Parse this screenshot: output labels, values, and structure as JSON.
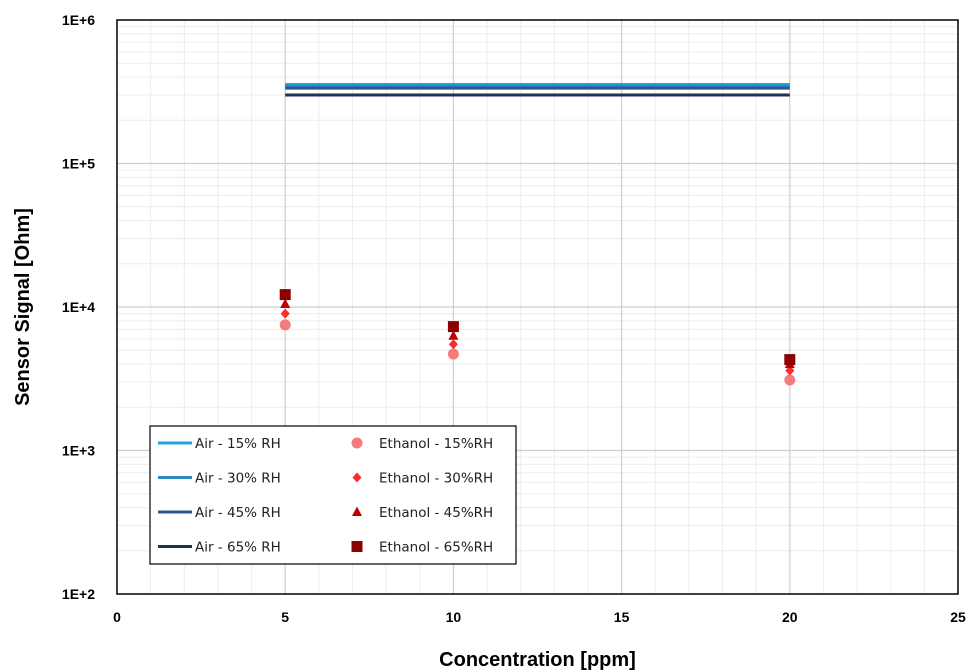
{
  "chart_data": {
    "type": "scatter",
    "title": "",
    "xlabel": "Concentration [ppm]",
    "ylabel": "Sensor Signal [Ohm]",
    "xlim": [
      0,
      25
    ],
    "ylim": [
      100,
      1000000
    ],
    "yscale": "log",
    "x_ticks": [
      0,
      5,
      10,
      15,
      20,
      25
    ],
    "x_tick_labels": [
      "0",
      "5",
      "10",
      "15",
      "20",
      "25"
    ],
    "y_ticks": [
      100,
      1000,
      10000,
      100000,
      1000000
    ],
    "y_tick_labels": [
      "1E+2",
      "1E+3",
      "1E+4",
      "1E+5",
      "1E+6"
    ],
    "grid": true,
    "legend_position": "bottom-left",
    "series": [
      {
        "name": "Air - 15% RH",
        "kind": "line",
        "color": "#1aa7dc",
        "x": [
          5,
          20
        ],
        "y": [
          355000,
          355000
        ]
      },
      {
        "name": "Air - 30% RH",
        "kind": "line",
        "color": "#2e86c1",
        "x": [
          5,
          20
        ],
        "y": [
          345000,
          345000
        ]
      },
      {
        "name": "Air - 45% RH",
        "kind": "line",
        "color": "#2f5597",
        "x": [
          5,
          20
        ],
        "y": [
          335000,
          335000
        ]
      },
      {
        "name": "Air - 65% RH",
        "kind": "line",
        "color": "#1f3050",
        "x": [
          5,
          20
        ],
        "y": [
          300000,
          300000
        ]
      },
      {
        "name": "Ethanol - 15%RH",
        "kind": "marker",
        "marker": "circle",
        "color": "#f47c7c",
        "x": [
          5,
          10,
          20
        ],
        "y": [
          7500,
          4700,
          3100
        ]
      },
      {
        "name": "Ethanol - 30%RH",
        "kind": "marker",
        "marker": "diamond",
        "color": "#ff2a2a",
        "x": [
          5,
          10,
          20
        ],
        "y": [
          9000,
          5500,
          3600
        ]
      },
      {
        "name": "Ethanol - 45%RH",
        "kind": "marker",
        "marker": "triangle",
        "color": "#c00000",
        "x": [
          5,
          10,
          20
        ],
        "y": [
          10500,
          6300,
          4000
        ]
      },
      {
        "name": "Ethanol - 65%RH",
        "kind": "marker",
        "marker": "square",
        "color": "#8b0000",
        "x": [
          5,
          10,
          20
        ],
        "y": [
          12200,
          7300,
          4300
        ]
      }
    ]
  }
}
